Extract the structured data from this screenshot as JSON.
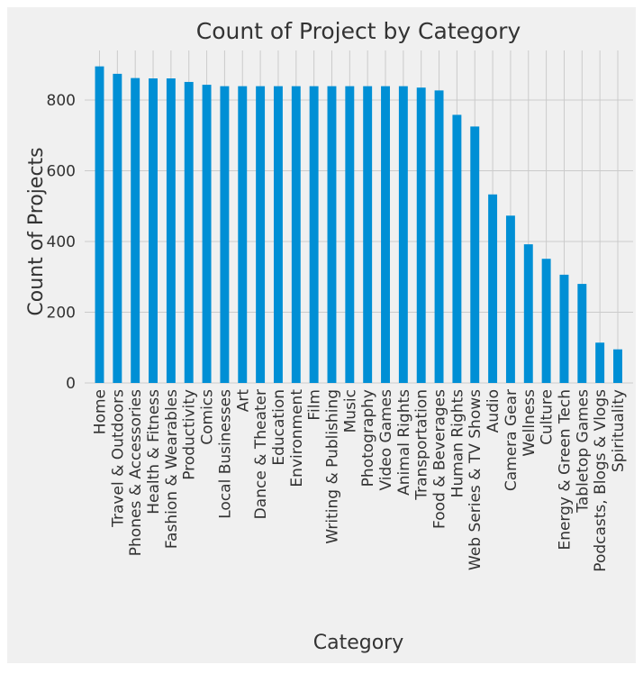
{
  "chart_data": {
    "type": "bar",
    "title": "Count of Project by Category",
    "xlabel": "Category",
    "ylabel": "Count of Projects",
    "ylim": [
      0,
      940
    ],
    "yticks": [
      0,
      200,
      400,
      600,
      800
    ],
    "grid": true,
    "legend": "none",
    "bar_color": "#008fd5",
    "categories": [
      "Home",
      "Travel & Outdoors",
      "Phones & Accessories",
      "Health & Fitness",
      "Fashion & Wearables",
      "Productivity",
      "Comics",
      "Local Businesses",
      "Art",
      "Dance & Theater",
      "Education",
      "Environment",
      "Film",
      "Writing & Publishing",
      "Music",
      "Photography",
      "Video Games",
      "Animal Rights",
      "Transportation",
      "Food & Beverages",
      "Human Rights",
      "Web Series & TV Shows",
      "Audio",
      "Camera Gear",
      "Wellness",
      "Culture",
      "Energy & Green Tech",
      "Tabletop Games",
      "Podcasts, Blogs & Vlogs",
      "Spirituality"
    ],
    "values": [
      895,
      874,
      862,
      861,
      861,
      851,
      843,
      839,
      839,
      839,
      839,
      839,
      839,
      839,
      839,
      839,
      839,
      839,
      835,
      827,
      758,
      725,
      533,
      473,
      392,
      351,
      306,
      280,
      114,
      95
    ]
  }
}
